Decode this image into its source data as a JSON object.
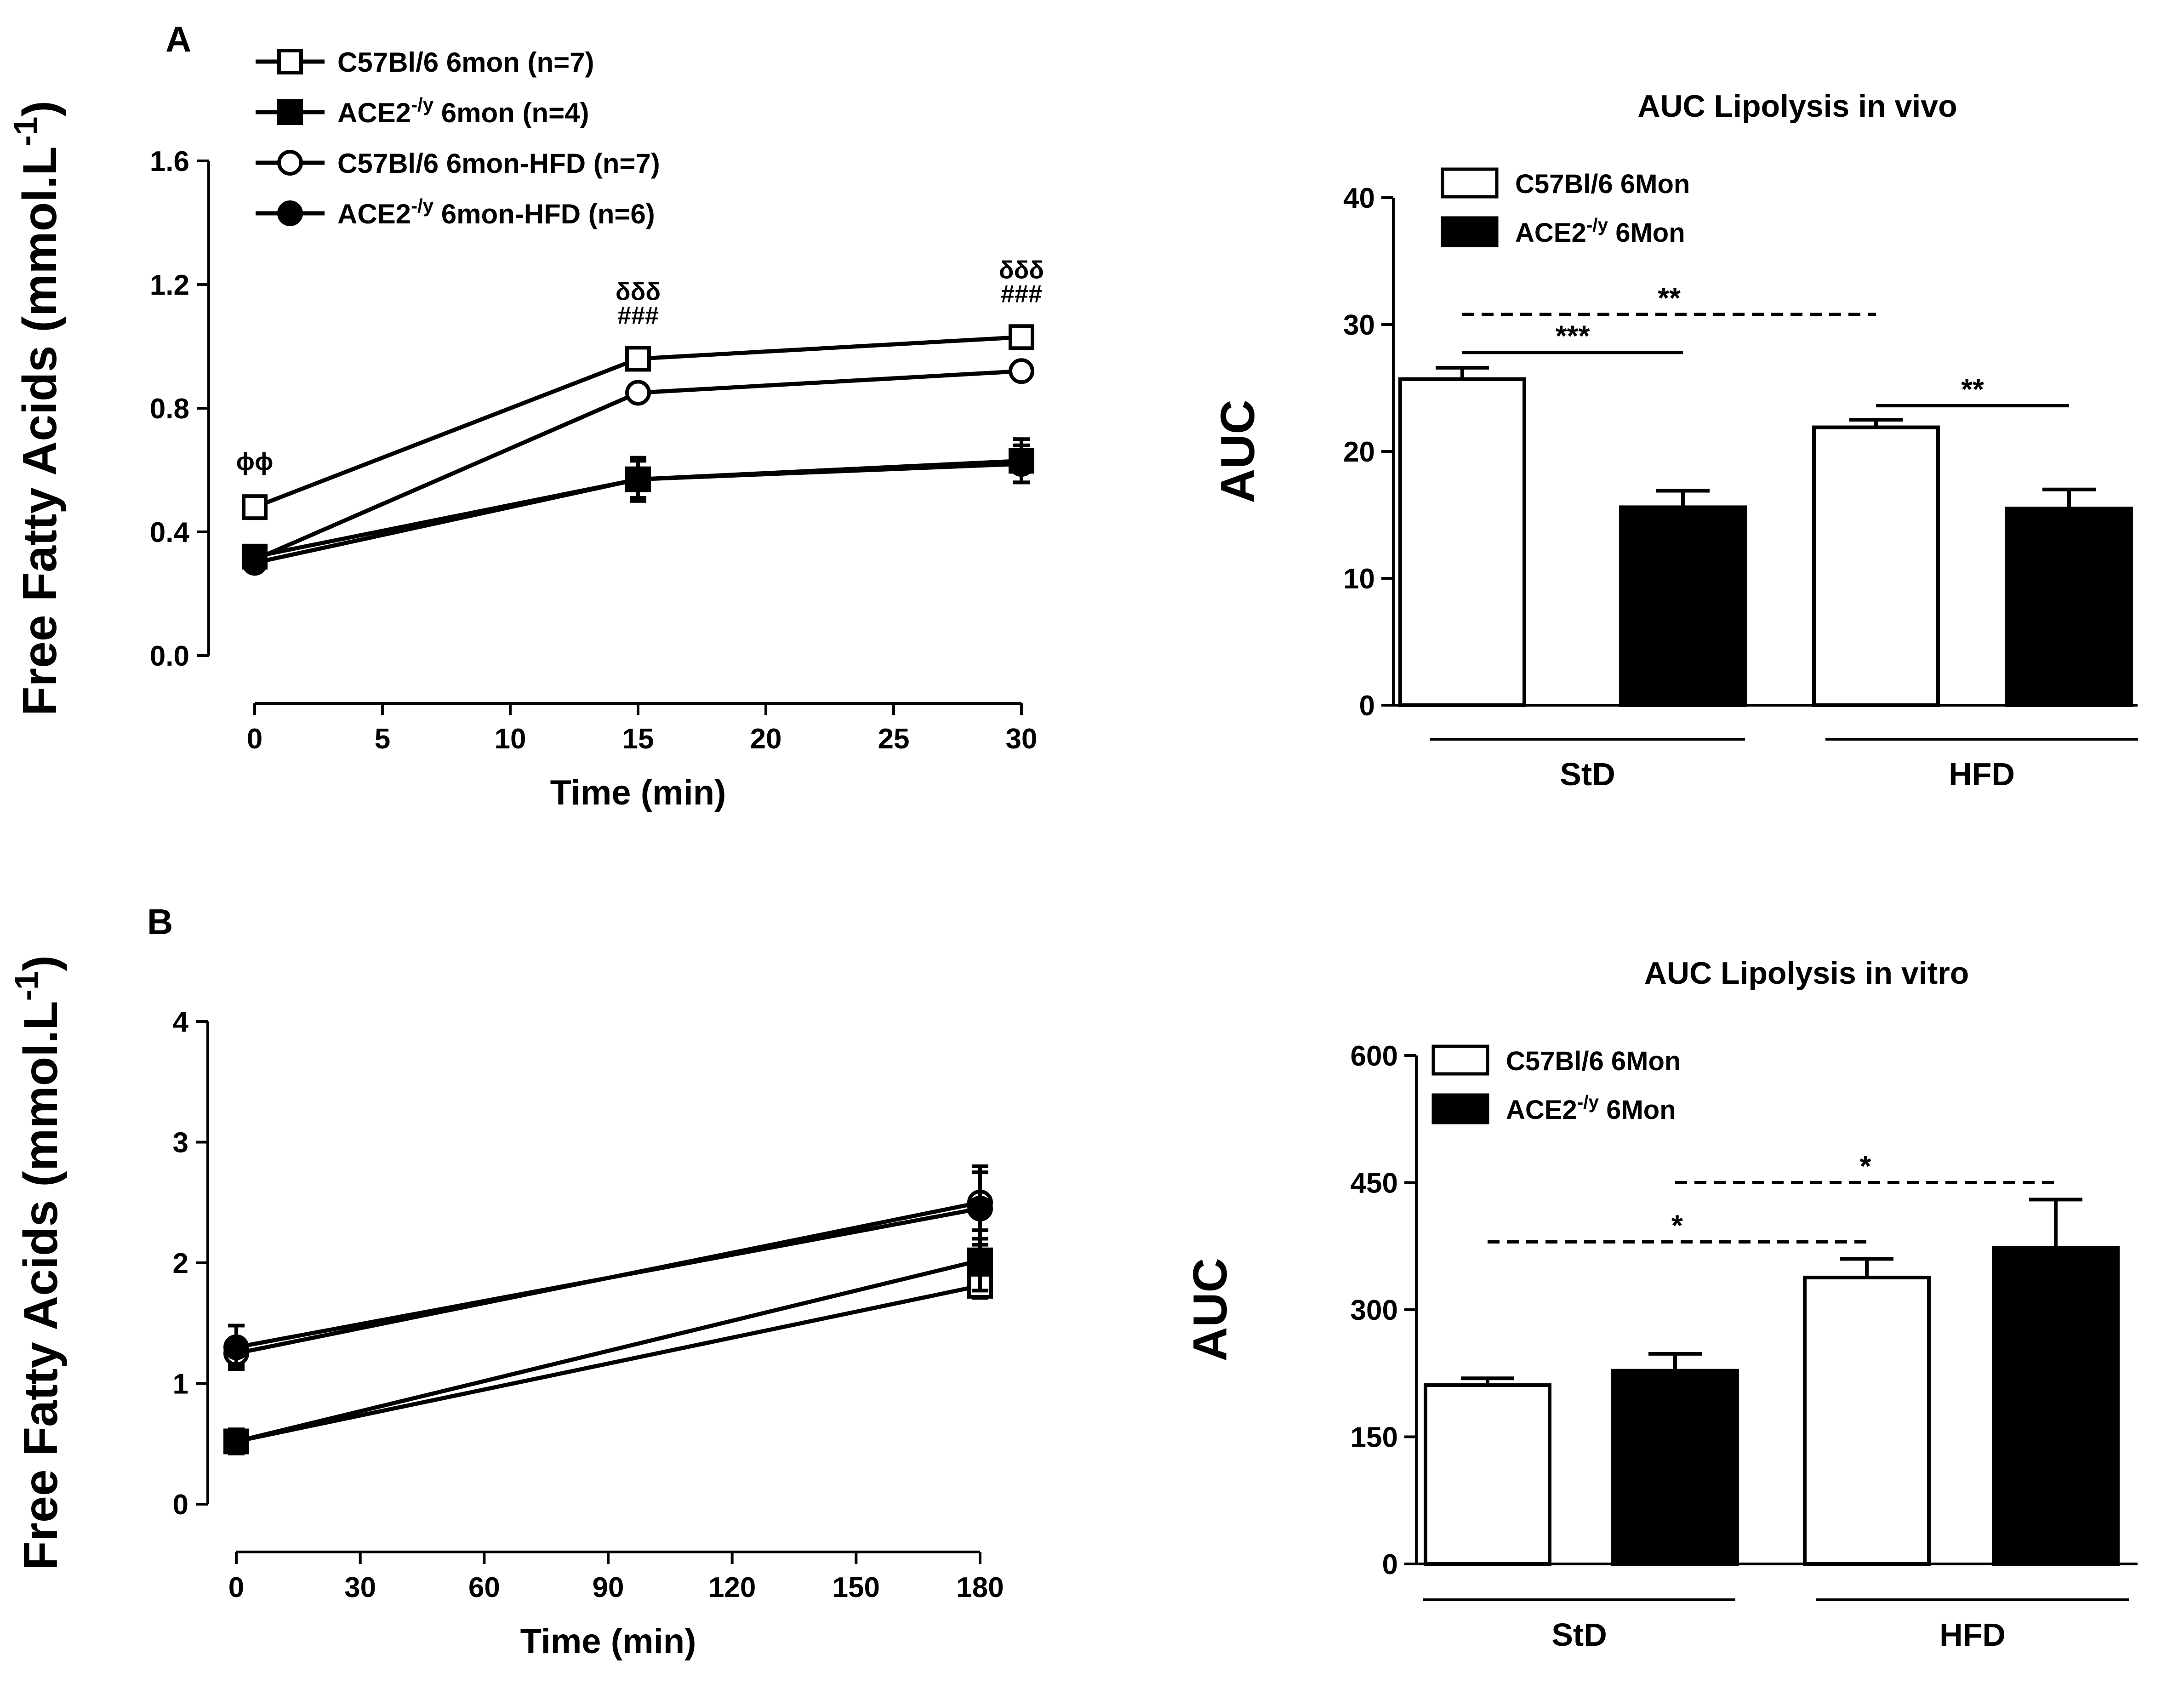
{
  "colors": {
    "ink": "#000000",
    "open_fill": "#ffffff",
    "filled_fill": "#000000"
  },
  "panel_labels": {
    "a": "A",
    "b": "B"
  },
  "chart_data": [
    {
      "id": "A_line",
      "type": "line",
      "panel": "A",
      "title": "",
      "xlabel": "Time (min)",
      "ylabel": "Free Fatty Acids  (mmol.L",
      "ylabel_sup": "-1",
      "ylabel_close": ")",
      "xlim": [
        0,
        30
      ],
      "ylim": [
        0,
        1.6
      ],
      "xticks": [
        "0",
        "5",
        "10",
        "15",
        "20",
        "25",
        "30"
      ],
      "yticks": [
        "0.0",
        "0.4",
        "0.8",
        "1.2",
        "1.6"
      ],
      "x": [
        0,
        15,
        30
      ],
      "series": [
        {
          "name_pre": "C57Bl/6  6mon (n=7)",
          "name_sup": "",
          "name_post": "",
          "marker": "square-open",
          "values": [
            0.48,
            0.96,
            1.03
          ],
          "errors": [
            0.02,
            0.015,
            0.015
          ]
        },
        {
          "name_pre": "ACE2",
          "name_sup": "-/y",
          "name_post": " 6mon (n=4)",
          "marker": "square-filled",
          "values": [
            0.32,
            0.57,
            0.63
          ],
          "errors": [
            0.03,
            0.07,
            0.07
          ]
        },
        {
          "name_pre": "C57Bl/6  6mon-HFD (n=7)",
          "name_sup": "",
          "name_post": "",
          "marker": "circle-open",
          "values": [
            0.31,
            0.85,
            0.92
          ],
          "errors": [
            0.02,
            0.015,
            0.015
          ]
        },
        {
          "name_pre": "ACE2",
          "name_sup": "-/y",
          "name_post": " 6mon-HFD (n=6)",
          "marker": "circle-filled",
          "values": [
            0.3,
            0.57,
            0.62
          ],
          "errors": [
            0.025,
            0.06,
            0.06
          ]
        }
      ],
      "annotations": [
        {
          "lines": [
            "ϕϕ"
          ],
          "x": 0,
          "y": 0.6
        },
        {
          "lines": [
            "δδδ",
            "###"
          ],
          "x": 15,
          "y": 1.15
        },
        {
          "lines": [
            "δδδ",
            "###"
          ],
          "x": 30,
          "y": 1.22
        }
      ]
    },
    {
      "id": "A_bar",
      "type": "bar",
      "panel": "A",
      "title": "AUC Lipolysis in vivo",
      "xlabel": "",
      "ylabel": "AUC",
      "ylim": [
        0,
        40
      ],
      "yticks": [
        "0",
        "10",
        "20",
        "30",
        "40"
      ],
      "groups": [
        "StD",
        "HFD"
      ],
      "series": [
        {
          "name_pre": "C57Bl/6  6Mon",
          "name_sup": "",
          "name_post": "",
          "fill": "open",
          "values": [
            25.7,
            21.9
          ],
          "errors": [
            0.9,
            0.6
          ]
        },
        {
          "name_pre": "ACE2",
          "name_sup": "-/y",
          "name_post": " 6Mon",
          "fill": "filled",
          "values": [
            15.6,
            15.5
          ],
          "errors": [
            1.3,
            1.5
          ]
        }
      ],
      "significance": [
        {
          "label": "***",
          "from": [
            0,
            0
          ],
          "to": [
            0,
            1
          ],
          "y": 27.8,
          "dashed": false
        },
        {
          "label": "**",
          "from": [
            1,
            0
          ],
          "to": [
            1,
            1
          ],
          "y": 23.6,
          "dashed": false
        },
        {
          "label": "**",
          "from": [
            0,
            0
          ],
          "to": [
            1,
            0
          ],
          "y": 30.8,
          "dashed": true
        }
      ]
    },
    {
      "id": "B_line",
      "type": "line",
      "panel": "B",
      "title": "",
      "xlabel": "Time (min)",
      "ylabel": "Free Fatty Acids  (mmol.L",
      "ylabel_sup": "-1",
      "ylabel_close": ")",
      "xlim": [
        0,
        180
      ],
      "ylim": [
        0,
        4
      ],
      "xticks": [
        "0",
        "30",
        "60",
        "90",
        "120",
        "150",
        "180"
      ],
      "yticks": [
        "0",
        "1",
        "2",
        "3",
        "4"
      ],
      "x": [
        0,
        180
      ],
      "series": [
        {
          "name": "C57Bl/6 6mon",
          "marker": "square-open",
          "values": [
            0.52,
            1.81
          ],
          "errors": [
            0.1,
            0.1
          ]
        },
        {
          "name": "ACE2-/y 6mon",
          "marker": "square-filled",
          "values": [
            0.52,
            2.02
          ],
          "errors": [
            0.08,
            0.25
          ]
        },
        {
          "name": "C57Bl/6 6mon-HFD",
          "marker": "circle-open",
          "values": [
            1.25,
            2.5
          ],
          "errors": [
            0.1,
            0.3
          ]
        },
        {
          "name": "ACE2-/y 6mon-HFD",
          "marker": "circle-filled",
          "values": [
            1.3,
            2.45
          ],
          "errors": [
            0.18,
            0.3
          ]
        }
      ]
    },
    {
      "id": "B_bar",
      "type": "bar",
      "panel": "B",
      "title": "AUC Lipolysis in vitro",
      "xlabel": "",
      "ylabel": "AUC",
      "ylim": [
        0,
        600
      ],
      "yticks": [
        "0",
        "150",
        "300",
        "450",
        "600"
      ],
      "groups": [
        "StD",
        "HFD"
      ],
      "series": [
        {
          "name_pre": "C57Bl/6  6Mon",
          "name_sup": "",
          "name_post": "",
          "fill": "open",
          "values": [
            211,
            338
          ],
          "errors": [
            8,
            22
          ]
        },
        {
          "name_pre": "ACE2",
          "name_sup": "-/y",
          "name_post": " 6Mon",
          "fill": "filled",
          "values": [
            228,
            373
          ],
          "errors": [
            20,
            57
          ]
        }
      ],
      "significance": [
        {
          "label": "*",
          "from": [
            0,
            0
          ],
          "to": [
            1,
            0
          ],
          "y": 380,
          "dashed": true
        },
        {
          "label": "*",
          "from": [
            0,
            1
          ],
          "to": [
            1,
            1
          ],
          "y": 450,
          "dashed": true
        }
      ]
    }
  ]
}
